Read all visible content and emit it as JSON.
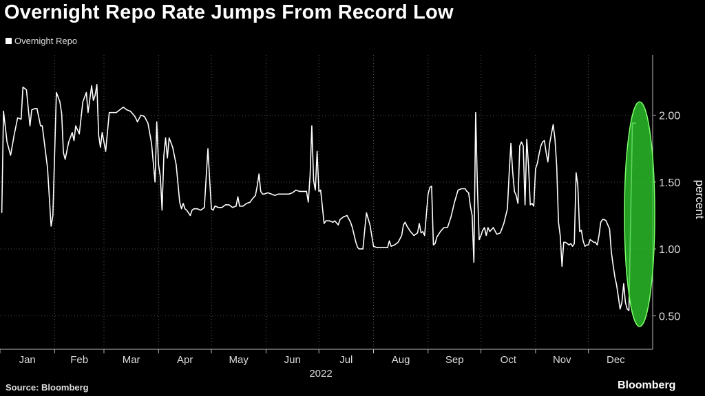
{
  "chart_data": {
    "type": "line",
    "title": "Overnight Repo Rate Jumps From Record Low",
    "ylabel": "percent",
    "xlabel": "2022",
    "legend": "top-left",
    "grid": true,
    "ylim": [
      0.25,
      2.45
    ],
    "yticks": [
      0.5,
      1.0,
      1.5,
      2.0
    ],
    "ytick_labels": [
      "0.50",
      "1.00",
      "1.50",
      "2.00"
    ],
    "months": [
      "Jan",
      "Feb",
      "Mar",
      "Apr",
      "May",
      "Jun",
      "Jul",
      "Aug",
      "Sep",
      "Oct",
      "Nov",
      "Dec"
    ],
    "highlight": {
      "shape": "ellipse",
      "color": "#2ecc2e",
      "x_day": 365,
      "y_center": 1.26,
      "y_half_span": 0.84
    },
    "series": [
      {
        "name": "Overnight Repo",
        "color": "#ffffff",
        "points": [
          [
            1,
            1.27
          ],
          [
            2,
            2.03
          ],
          [
            4,
            1.8
          ],
          [
            6,
            1.7
          ],
          [
            8,
            1.85
          ],
          [
            10,
            1.98
          ],
          [
            12,
            1.97
          ],
          [
            13,
            2.21
          ],
          [
            15,
            2.19
          ],
          [
            17,
            1.92
          ],
          [
            18,
            2.04
          ],
          [
            20,
            2.05
          ],
          [
            21,
            2.05
          ],
          [
            23,
            1.92
          ],
          [
            24,
            1.92
          ],
          [
            26,
            1.71
          ],
          [
            27,
            1.6
          ],
          [
            29,
            1.17
          ],
          [
            30,
            1.25
          ],
          [
            32,
            2.17
          ],
          [
            34,
            2.1
          ],
          [
            35,
            2.01
          ],
          [
            36,
            1.72
          ],
          [
            37,
            1.67
          ],
          [
            39,
            1.8
          ],
          [
            41,
            1.87
          ],
          [
            42,
            1.81
          ],
          [
            43,
            1.92
          ],
          [
            45,
            1.86
          ],
          [
            47,
            2.1
          ],
          [
            49,
            2.17
          ],
          [
            50,
            2.02
          ],
          [
            52,
            2.22
          ],
          [
            53,
            2.11
          ],
          [
            54,
            2.15
          ],
          [
            55,
            2.23
          ],
          [
            56,
            1.85
          ],
          [
            57,
            1.76
          ],
          [
            58,
            1.87
          ],
          [
            60,
            1.73
          ],
          [
            62,
            2.02
          ],
          [
            64,
            2.02
          ],
          [
            66,
            2.02
          ],
          [
            68,
            2.04
          ],
          [
            70,
            2.06
          ],
          [
            72,
            2.04
          ],
          [
            74,
            2.03
          ],
          [
            76,
            2.0
          ],
          [
            77,
            1.98
          ],
          [
            78,
            1.95
          ],
          [
            80,
            2.0
          ],
          [
            82,
            1.99
          ],
          [
            84,
            1.94
          ],
          [
            86,
            1.79
          ],
          [
            88,
            1.5
          ],
          [
            89,
            1.95
          ],
          [
            90,
            1.63
          ],
          [
            91,
            1.54
          ],
          [
            92,
            1.29
          ],
          [
            93,
            1.7
          ],
          [
            94,
            1.83
          ],
          [
            95,
            1.68
          ],
          [
            96,
            1.83
          ],
          [
            98,
            1.76
          ],
          [
            100,
            1.63
          ],
          [
            102,
            1.35
          ],
          [
            103,
            1.3
          ],
          [
            104,
            1.34
          ],
          [
            105,
            1.3
          ],
          [
            106,
            1.29
          ],
          [
            108,
            1.25
          ],
          [
            109,
            1.29
          ],
          [
            110,
            1.3
          ],
          [
            112,
            1.3
          ],
          [
            114,
            1.29
          ],
          [
            116,
            1.31
          ],
          [
            117,
            1.53
          ],
          [
            118,
            1.75
          ],
          [
            119,
            1.52
          ],
          [
            120,
            1.3
          ],
          [
            121,
            1.29
          ],
          [
            122,
            1.32
          ],
          [
            124,
            1.31
          ],
          [
            126,
            1.31
          ],
          [
            128,
            1.33
          ],
          [
            130,
            1.33
          ],
          [
            132,
            1.31
          ],
          [
            134,
            1.32
          ],
          [
            135,
            1.39
          ],
          [
            136,
            1.32
          ],
          [
            137,
            1.32
          ],
          [
            138,
            1.32
          ],
          [
            140,
            1.34
          ],
          [
            142,
            1.35
          ],
          [
            143,
            1.37
          ],
          [
            145,
            1.4
          ],
          [
            146,
            1.47
          ],
          [
            147,
            1.56
          ],
          [
            148,
            1.43
          ],
          [
            149,
            1.41
          ],
          [
            150,
            1.41
          ],
          [
            152,
            1.42
          ],
          [
            154,
            1.41
          ],
          [
            156,
            1.4
          ],
          [
            158,
            1.41
          ],
          [
            160,
            1.41
          ],
          [
            162,
            1.41
          ],
          [
            164,
            1.41
          ],
          [
            166,
            1.42
          ],
          [
            168,
            1.44
          ],
          [
            170,
            1.43
          ],
          [
            172,
            1.43
          ],
          [
            174,
            1.43
          ],
          [
            175,
            1.35
          ],
          [
            176,
            1.55
          ],
          [
            177,
            1.92
          ],
          [
            178,
            1.51
          ],
          [
            179,
            1.44
          ],
          [
            180,
            1.73
          ],
          [
            181,
            1.43
          ],
          [
            182,
            1.44
          ],
          [
            184,
            1.19
          ],
          [
            185,
            1.21
          ],
          [
            187,
            1.21
          ],
          [
            189,
            1.2
          ],
          [
            190,
            1.21
          ],
          [
            192,
            1.18
          ],
          [
            193,
            1.22
          ],
          [
            195,
            1.24
          ],
          [
            197,
            1.25
          ],
          [
            199,
            1.2
          ],
          [
            200,
            1.16
          ],
          [
            202,
            1.05
          ],
          [
            203,
            1.01
          ],
          [
            204,
            1.0
          ],
          [
            206,
            1.0
          ],
          [
            207,
            1.14
          ],
          [
            208,
            1.27
          ],
          [
            210,
            1.18
          ],
          [
            212,
            1.02
          ],
          [
            214,
            1.01
          ],
          [
            216,
            1.01
          ],
          [
            218,
            1.01
          ],
          [
            220,
            1.01
          ],
          [
            221,
            1.06
          ],
          [
            222,
            1.02
          ],
          [
            224,
            1.03
          ],
          [
            226,
            1.05
          ],
          [
            228,
            1.1
          ],
          [
            229,
            1.18
          ],
          [
            230,
            1.2
          ],
          [
            231,
            1.17
          ],
          [
            233,
            1.13
          ],
          [
            235,
            1.1
          ],
          [
            237,
            1.12
          ],
          [
            238,
            1.19
          ],
          [
            239,
            1.12
          ],
          [
            240,
            1.13
          ],
          [
            241,
            1.1
          ],
          [
            243,
            1.41
          ],
          [
            244,
            1.46
          ],
          [
            245,
            1.47
          ],
          [
            246,
            1.03
          ],
          [
            247,
            1.04
          ],
          [
            248,
            1.09
          ],
          [
            250,
            1.13
          ],
          [
            252,
            1.16
          ],
          [
            254,
            1.16
          ],
          [
            256,
            1.24
          ],
          [
            258,
            1.35
          ],
          [
            260,
            1.44
          ],
          [
            262,
            1.45
          ],
          [
            264,
            1.45
          ],
          [
            265,
            1.43
          ],
          [
            266,
            1.42
          ],
          [
            267,
            1.32
          ],
          [
            268,
            1.25
          ],
          [
            269,
            0.9
          ],
          [
            270,
            2.02
          ],
          [
            271,
            1.45
          ],
          [
            272,
            1.07
          ],
          [
            273,
            1.1
          ],
          [
            274,
            1.14
          ],
          [
            275,
            1.16
          ],
          [
            276,
            1.1
          ],
          [
            277,
            1.16
          ],
          [
            278,
            1.13
          ],
          [
            280,
            1.16
          ],
          [
            282,
            1.11
          ],
          [
            284,
            1.12
          ],
          [
            286,
            1.19
          ],
          [
            288,
            1.3
          ],
          [
            289,
            1.56
          ],
          [
            290,
            1.79
          ],
          [
            291,
            1.58
          ],
          [
            292,
            1.43
          ],
          [
            293,
            1.4
          ],
          [
            294,
            1.34
          ],
          [
            295,
            1.77
          ],
          [
            296,
            1.8
          ],
          [
            297,
            1.77
          ],
          [
            298,
            1.33
          ],
          [
            299,
            1.82
          ],
          [
            300,
            1.62
          ],
          [
            301,
            1.33
          ],
          [
            302,
            1.34
          ],
          [
            303,
            1.32
          ],
          [
            304,
            1.6
          ],
          [
            305,
            1.64
          ],
          [
            306,
            1.71
          ],
          [
            307,
            1.77
          ],
          [
            308,
            1.8
          ],
          [
            309,
            1.81
          ],
          [
            310,
            1.72
          ],
          [
            311,
            1.65
          ],
          [
            312,
            1.79
          ],
          [
            313,
            1.86
          ],
          [
            314,
            1.93
          ],
          [
            315,
            1.82
          ],
          [
            316,
            1.62
          ],
          [
            317,
            1.2
          ],
          [
            318,
            1.1
          ],
          [
            319,
            0.87
          ],
          [
            320,
            1.05
          ],
          [
            321,
            1.05
          ],
          [
            322,
            1.04
          ],
          [
            323,
            1.03
          ],
          [
            324,
            1.04
          ],
          [
            325,
            1.02
          ],
          [
            326,
            1.04
          ],
          [
            327,
            1.57
          ],
          [
            328,
            1.47
          ],
          [
            329,
            1.13
          ],
          [
            330,
            1.14
          ],
          [
            331,
            1.06
          ],
          [
            332,
            1.02
          ],
          [
            333,
            1.03
          ],
          [
            334,
            1.03
          ],
          [
            335,
            1.07
          ],
          [
            336,
            1.06
          ],
          [
            337,
            1.05
          ],
          [
            338,
            1.05
          ],
          [
            339,
            1.03
          ],
          [
            340,
            1.1
          ],
          [
            341,
            1.2
          ],
          [
            342,
            1.22
          ],
          [
            343,
            1.22
          ],
          [
            344,
            1.21
          ],
          [
            345,
            1.18
          ],
          [
            346,
            1.15
          ],
          [
            347,
            0.98
          ],
          [
            348,
            0.88
          ],
          [
            349,
            0.79
          ],
          [
            350,
            0.73
          ],
          [
            351,
            0.64
          ],
          [
            352,
            0.55
          ],
          [
            353,
            0.6
          ],
          [
            354,
            0.74
          ],
          [
            355,
            0.6
          ],
          [
            356,
            0.55
          ],
          [
            357,
            0.54
          ],
          [
            359,
            1.94
          ],
          [
            361,
            1.94
          ]
        ]
      }
    ]
  }
}
